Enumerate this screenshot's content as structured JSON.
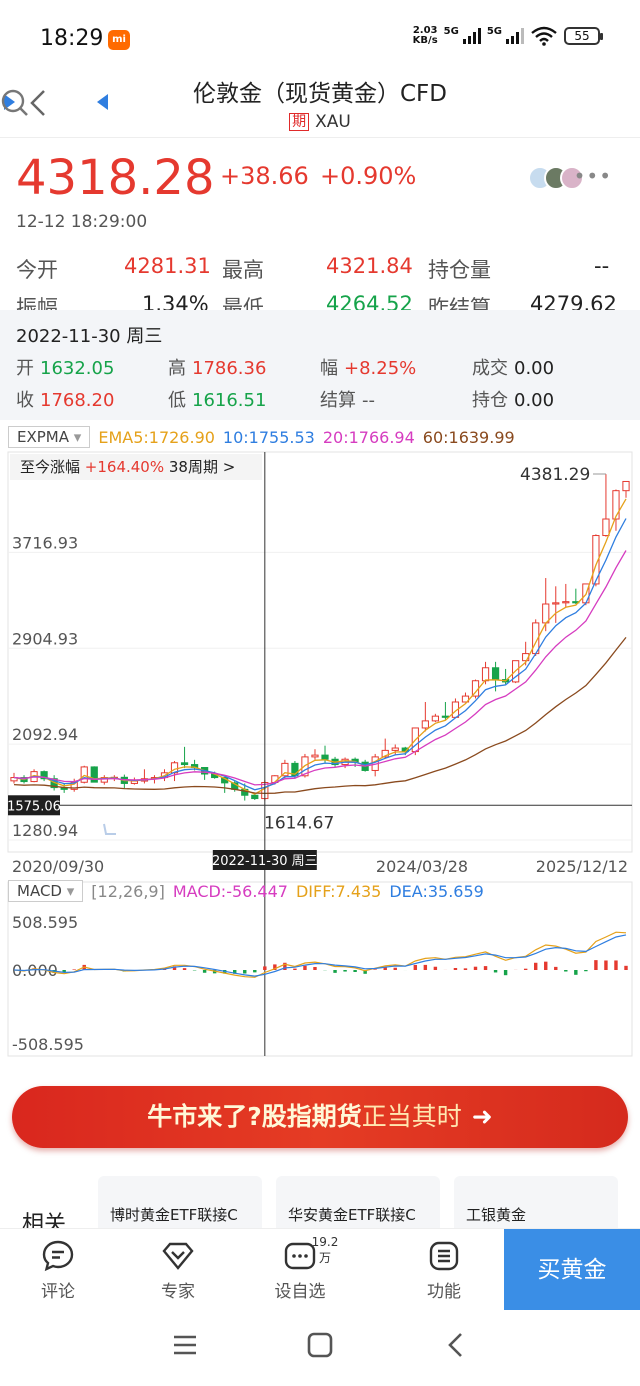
{
  "status_bar": {
    "time": "18:29",
    "net_speed": "2.03",
    "net_unit": "KB/s",
    "sig1": "5G",
    "sig2": "5G",
    "battery": "55"
  },
  "header": {
    "title": "伦敦金（现货黄金）CFD",
    "badge": "期",
    "symbol": "XAU"
  },
  "quote": {
    "price": "4318.28",
    "change": "+38.66",
    "change_pct": "+0.90%",
    "time": "12-12 18:29:00",
    "open_label": "今开",
    "open": "4281.31",
    "high_label": "最高",
    "high": "4321.84",
    "oi_label": "持仓量",
    "oi": "--",
    "amp_label": "振幅",
    "amp": "1.34%",
    "low_label": "最低",
    "low": "4264.52",
    "prev_label": "昨结算",
    "prev": "4279.62"
  },
  "ohlc": {
    "date": "2022-11-30 周三",
    "open_label": "开",
    "open": "1632.05",
    "high_label": "高",
    "high": "1786.36",
    "amp_label": "幅",
    "amp": "+8.25%",
    "vol_label": "成交",
    "vol": "0.00",
    "close_label": "收",
    "close": "1768.20",
    "low_label": "低",
    "low": "1616.51",
    "settle_label": "结算",
    "settle": "--",
    "oi_label": "持仓",
    "oi": "0.00"
  },
  "indicators": {
    "main_select": "EXPMA",
    "ema5": "EMA5:1726.90",
    "ema10": "10:1755.53",
    "ema20": "20:1766.94",
    "ema60": "60:1639.99",
    "range_label": "至今涨幅",
    "range_pct": "+164.40%",
    "range_period": "38周期 >",
    "sub_select": "MACD",
    "macd_params": "[12,26,9]",
    "macd": "MACD:-56.447",
    "diff": "DIFF:7.435",
    "dea": "DEA:35.659"
  },
  "chart_data": {
    "type": "candlestick",
    "period": "monthly",
    "x_start": "2020/09/30",
    "x_end": "2025/12/12",
    "xtick_labels": [
      "2020/09/30",
      "2022-11-30 周三",
      "2024/03/28",
      "2025/12/12"
    ],
    "price_ticks": [
      "3716.93",
      "2904.93",
      "2092.94",
      "1280.94"
    ],
    "ylim": [
      1280.94,
      4381.29
    ],
    "max_label": "4381.29",
    "min_label": "1614.67",
    "crosshair_price": "1575.06",
    "crosshair_date": "2022-11-30 周三",
    "candles": [
      [
        1782,
        1850,
        1760,
        1810
      ],
      [
        1810,
        1830,
        1760,
        1776
      ],
      [
        1776,
        1880,
        1770,
        1860
      ],
      [
        1860,
        1870,
        1780,
        1800
      ],
      [
        1800,
        1830,
        1700,
        1725
      ],
      [
        1725,
        1760,
        1680,
        1710
      ],
      [
        1710,
        1800,
        1690,
        1770
      ],
      [
        1770,
        1910,
        1760,
        1900
      ],
      [
        1900,
        1905,
        1770,
        1771
      ],
      [
        1771,
        1830,
        1750,
        1810
      ],
      [
        1810,
        1830,
        1780,
        1812
      ],
      [
        1812,
        1835,
        1720,
        1760
      ],
      [
        1760,
        1810,
        1750,
        1780
      ],
      [
        1780,
        1880,
        1760,
        1800
      ],
      [
        1800,
        1830,
        1760,
        1810
      ],
      [
        1810,
        1880,
        1780,
        1850
      ],
      [
        1850,
        1950,
        1780,
        1935
      ],
      [
        1935,
        2070,
        1890,
        1920
      ],
      [
        1920,
        1960,
        1870,
        1895
      ],
      [
        1895,
        1870,
        1790,
        1840
      ],
      [
        1840,
        1860,
        1800,
        1810
      ],
      [
        1810,
        1815,
        1680,
        1765
      ],
      [
        1765,
        1780,
        1690,
        1710
      ],
      [
        1710,
        1760,
        1615,
        1660
      ],
      [
        1660,
        1680,
        1620,
        1632
      ],
      [
        1632,
        1786,
        1616,
        1768
      ],
      [
        1768,
        1830,
        1750,
        1825
      ],
      [
        1825,
        1960,
        1800,
        1930
      ],
      [
        1930,
        1950,
        1800,
        1825
      ],
      [
        1825,
        2010,
        1810,
        1985
      ],
      [
        1985,
        2050,
        1960,
        2000
      ],
      [
        2000,
        2080,
        1930,
        1965
      ],
      [
        1965,
        1985,
        1900,
        1920
      ],
      [
        1920,
        1980,
        1890,
        1965
      ],
      [
        1965,
        1980,
        1900,
        1940
      ],
      [
        1940,
        1960,
        1860,
        1870
      ],
      [
        1870,
        2010,
        1820,
        1985
      ],
      [
        1985,
        2140,
        1970,
        2040
      ],
      [
        2040,
        2090,
        2000,
        2060
      ],
      [
        2060,
        2070,
        2000,
        2030
      ],
      [
        2030,
        2200,
        2000,
        2230
      ],
      [
        2230,
        2450,
        2200,
        2290
      ],
      [
        2290,
        2350,
        2280,
        2330
      ],
      [
        2330,
        2450,
        2300,
        2320
      ],
      [
        2320,
        2480,
        2320,
        2450
      ],
      [
        2450,
        2530,
        2460,
        2500
      ],
      [
        2500,
        2640,
        2480,
        2630
      ],
      [
        2630,
        2790,
        2600,
        2740
      ],
      [
        2740,
        2790,
        2540,
        2640
      ],
      [
        2640,
        2730,
        2600,
        2620
      ],
      [
        2620,
        2800,
        2610,
        2800
      ],
      [
        2800,
        2960,
        2760,
        2860
      ],
      [
        2860,
        3150,
        2840,
        3120
      ],
      [
        3120,
        3500,
        3050,
        3280
      ],
      [
        3280,
        3430,
        3120,
        3290
      ],
      [
        3290,
        3450,
        3250,
        3300
      ],
      [
        3300,
        3410,
        3280,
        3290
      ],
      [
        3290,
        3450,
        3270,
        3450
      ],
      [
        3450,
        3870,
        3430,
        3860
      ],
      [
        3860,
        4380,
        3850,
        4000
      ],
      [
        4000,
        4250,
        3900,
        4240
      ],
      [
        4240,
        4320,
        4180,
        4318
      ]
    ],
    "macd_ticks": [
      "508.595",
      "0.000",
      "-508.595"
    ]
  },
  "banner": {
    "part1": "牛市来了?",
    "part2": "股指期货",
    "part3": "正当其时",
    "arrow": "➜"
  },
  "related": {
    "title": "相关",
    "cards": [
      "博时黄金ETF联接C",
      "华安黄金ETF联接C",
      "工银黄金"
    ]
  },
  "bottom_nav": {
    "comment": "评论",
    "expert": "专家",
    "watch": "设自选",
    "watch_count": "19.2万",
    "functions": "功能",
    "buy": "买黄金"
  }
}
